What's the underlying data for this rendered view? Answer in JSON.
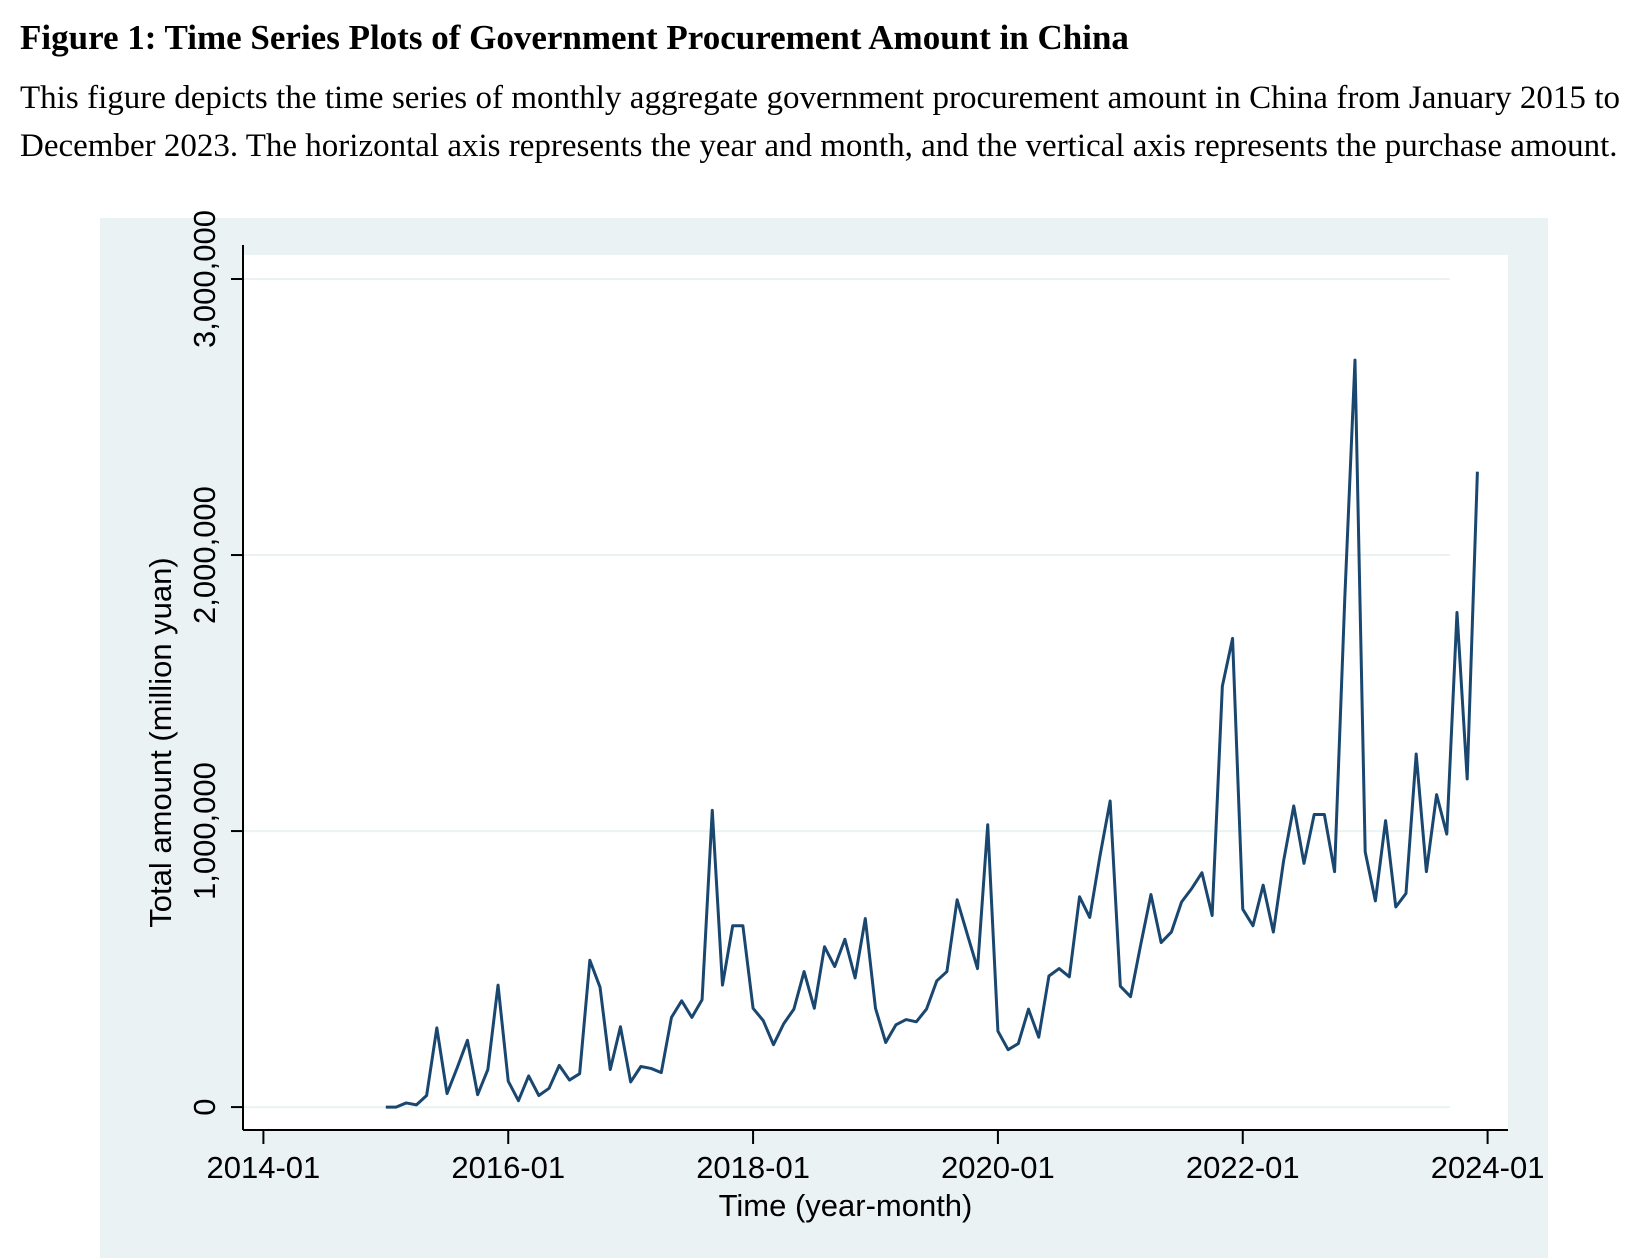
{
  "figure": {
    "title": "Figure 1: Time Series Plots of Government Procurement Amount in China",
    "caption": "This figure depicts the time series of monthly aggregate government procurement amount in China from January 2015 to December 2023. The horizontal axis represents the year and month, and the vertical axis represents the purchase amount."
  },
  "chart_data": {
    "type": "line",
    "x_label": "Time (year-month)",
    "y_label": "Total amount (million yuan)",
    "color": "#1a476f",
    "grid": true,
    "xlim": [
      "2013-11",
      "2024-03"
    ],
    "xticks": [
      "2014-01",
      "2016-01",
      "2018-01",
      "2020-01",
      "2022-01",
      "2024-01"
    ],
    "ylim": [
      -83000,
      3087000
    ],
    "yticks": [
      0,
      {
        "value": 1000000,
        "label": "1,000,000"
      },
      {
        "value": 2000000,
        "label": "2,000,000"
      },
      {
        "value": 3000000,
        "label": "3,000,000"
      }
    ],
    "x": [
      "2015-01",
      "2015-02",
      "2015-03",
      "2015-04",
      "2015-05",
      "2015-06",
      "2015-07",
      "2015-08",
      "2015-09",
      "2015-10",
      "2015-11",
      "2015-12",
      "2016-01",
      "2016-02",
      "2016-03",
      "2016-04",
      "2016-05",
      "2016-06",
      "2016-07",
      "2016-08",
      "2016-09",
      "2016-10",
      "2016-11",
      "2016-12",
      "2017-01",
      "2017-02",
      "2017-03",
      "2017-04",
      "2017-05",
      "2017-06",
      "2017-07",
      "2017-08",
      "2017-09",
      "2017-10",
      "2017-11",
      "2017-12",
      "2018-01",
      "2018-02",
      "2018-03",
      "2018-04",
      "2018-05",
      "2018-06",
      "2018-07",
      "2018-08",
      "2018-09",
      "2018-10",
      "2018-11",
      "2018-12",
      "2019-01",
      "2019-02",
      "2019-03",
      "2019-04",
      "2019-05",
      "2019-06",
      "2019-07",
      "2019-08",
      "2019-09",
      "2019-10",
      "2019-11",
      "2019-12",
      "2020-01",
      "2020-02",
      "2020-03",
      "2020-04",
      "2020-05",
      "2020-06",
      "2020-07",
      "2020-08",
      "2020-09",
      "2020-10",
      "2020-11",
      "2020-12",
      "2021-01",
      "2021-02",
      "2021-03",
      "2021-04",
      "2021-05",
      "2021-06",
      "2021-07",
      "2021-08",
      "2021-09",
      "2021-10",
      "2021-11",
      "2021-12",
      "2022-01",
      "2022-02",
      "2022-03",
      "2022-04",
      "2022-05",
      "2022-06",
      "2022-07",
      "2022-08",
      "2022-09",
      "2022-10",
      "2022-11",
      "2022-12",
      "2023-01",
      "2023-02",
      "2023-03",
      "2023-04",
      "2023-05",
      "2023-06",
      "2023-07",
      "2023-08",
      "2023-09",
      "2023-10",
      "2023-11",
      "2023-12"
    ],
    "values": [
      0,
      0,
      15000,
      8000,
      42000,
      287000,
      49000,
      143000,
      242000,
      45000,
      136000,
      442000,
      94000,
      23000,
      113000,
      42000,
      68000,
      151000,
      98000,
      121000,
      532000,
      434000,
      136000,
      291000,
      91000,
      147000,
      140000,
      125000,
      325000,
      385000,
      325000,
      389000,
      1075000,
      442000,
      657000,
      657000,
      358000,
      313000,
      226000,
      302000,
      355000,
      491000,
      358000,
      581000,
      509000,
      608000,
      468000,
      683000,
      358000,
      234000,
      298000,
      317000,
      309000,
      355000,
      457000,
      491000,
      751000,
      626000,
      502000,
      1023000,
      275000,
      208000,
      230000,
      355000,
      253000,
      475000,
      502000,
      472000,
      762000,
      687000,
      909000,
      1109000,
      438000,
      400000,
      589000,
      770000,
      596000,
      634000,
      743000,
      792000,
      849000,
      694000,
      1525000,
      1698000,
      717000,
      657000,
      804000,
      634000,
      891000,
      1091000,
      883000,
      1060000,
      1060000,
      853000,
      1842000,
      2706000,
      925000,
      747000,
      1038000,
      725000,
      774000,
      1279000,
      853000,
      1132000,
      989000,
      1792000,
      1189000,
      2302000
    ]
  }
}
